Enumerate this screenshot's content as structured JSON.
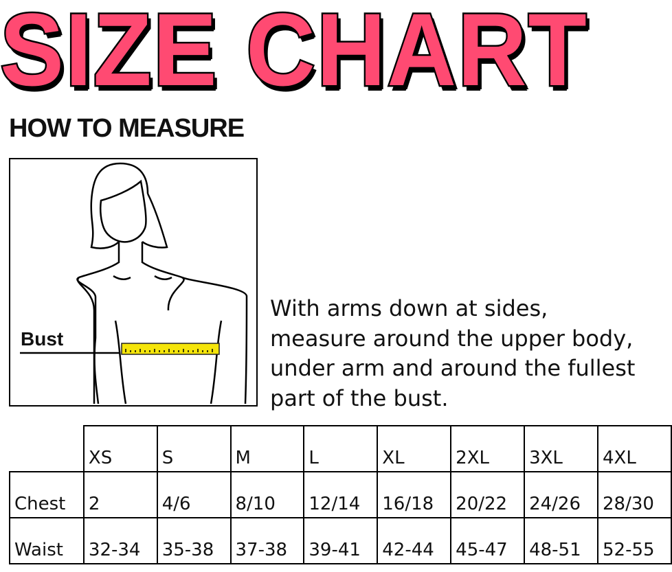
{
  "title": "SIZE CHART",
  "how_to_measure": "HOW TO MEASURE",
  "figure": {
    "label": "Bust",
    "tape_color": "#f5e50a"
  },
  "instructions": [
    "With arms down at sides,",
    "measure around the upper body,",
    "under arm and around the fullest",
    "part of the bust."
  ],
  "colors": {
    "title": "#ff4a72"
  },
  "table": {
    "sizes": [
      "XS",
      "S",
      "M",
      "L",
      "XL",
      "2XL",
      "3XL",
      "4XL"
    ],
    "rows": [
      {
        "label": "Chest",
        "values": [
          "2",
          "4/6",
          "8/10",
          "12/14",
          "16/18",
          "20/22",
          "24/26",
          "28/30"
        ]
      },
      {
        "label": "Waist",
        "values": [
          "32-34",
          "35-38",
          "37-38",
          "39-41",
          "42-44",
          "45-47",
          "48-51",
          "52-55"
        ]
      }
    ]
  }
}
